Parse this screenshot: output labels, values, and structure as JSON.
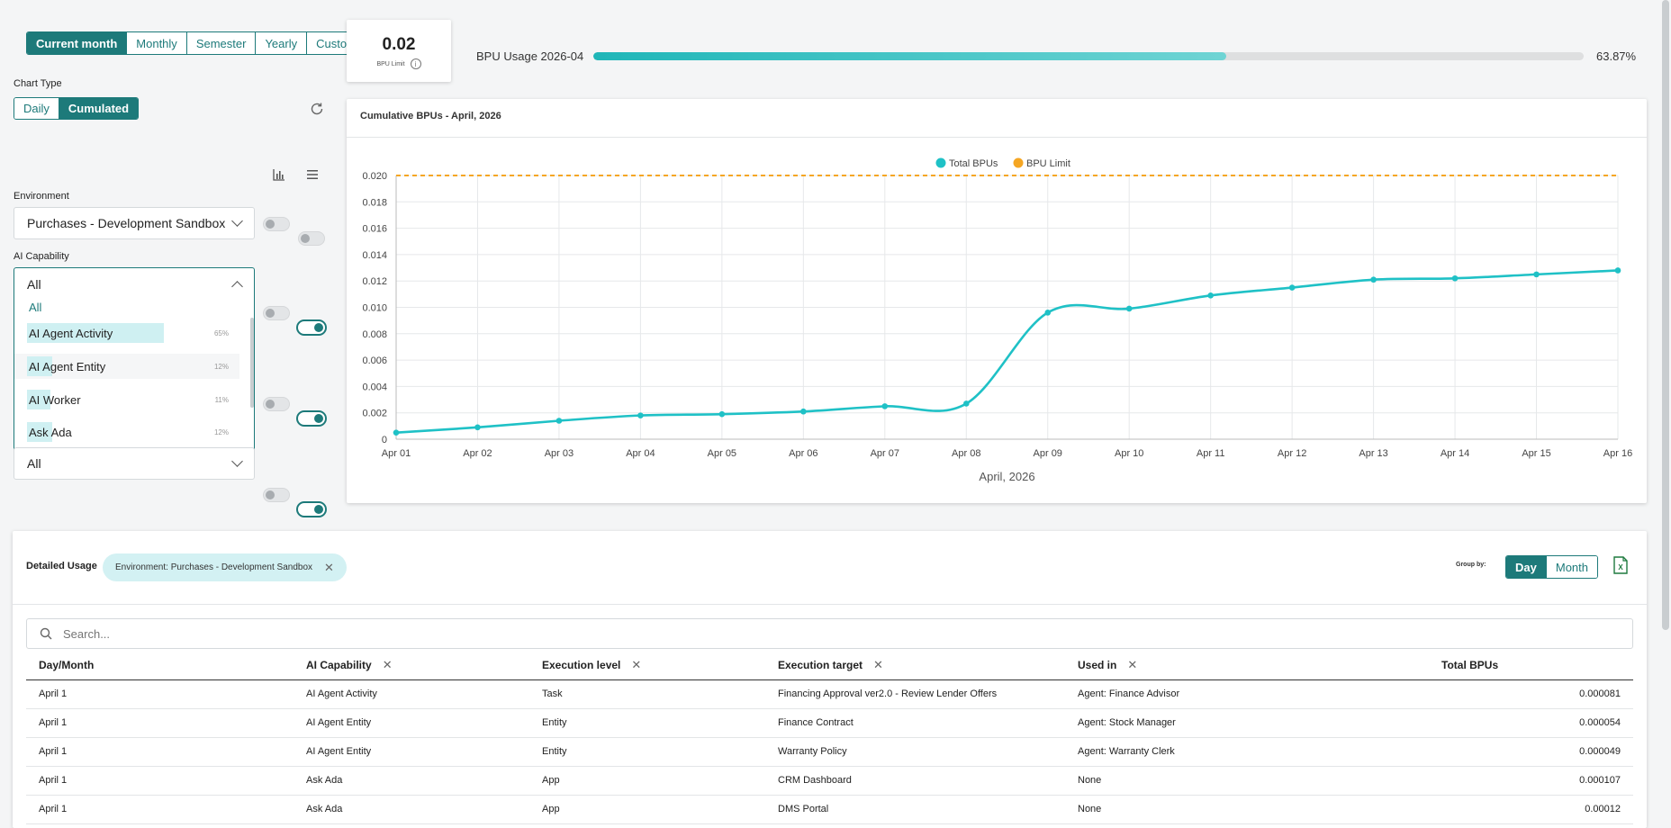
{
  "period": {
    "options": [
      "Current month",
      "Monthly",
      "Semester",
      "Yearly",
      "Custom"
    ],
    "active": "Current month"
  },
  "chart_type": {
    "label": "Chart Type",
    "options": [
      "Daily",
      "Cumulated"
    ],
    "active": "Cumulated"
  },
  "filters": {
    "environment_label": "Environment",
    "environment_value": "Purchases - Development Sandbox",
    "capability_label": "AI Capability",
    "capability_value": "All",
    "dropdown": {
      "items": [
        {
          "label": "All",
          "pct": ""
        },
        {
          "label": "AI Agent Activity",
          "pct": "65%",
          "fraction": 0.65
        },
        {
          "label": "AI Agent Entity",
          "pct": "12%",
          "fraction": 0.12
        },
        {
          "label": "AI Worker",
          "pct": "11%",
          "fraction": 0.11
        },
        {
          "label": "Ask Ada",
          "pct": "12%",
          "fraction": 0.12
        }
      ]
    },
    "last_select_value": "All"
  },
  "bpu_limit": {
    "value": "0.02",
    "label": "BPU Limit"
  },
  "usage": {
    "label": "BPU Usage 2026-04",
    "percent_text": "63.87%",
    "fraction": 0.6387
  },
  "chart_card": {
    "title": "Cumulative BPUs - April, 2026"
  },
  "chart_data": {
    "type": "line",
    "x": [
      "Apr 01",
      "Apr 02",
      "Apr 03",
      "Apr 04",
      "Apr 05",
      "Apr 06",
      "Apr 07",
      "Apr 08",
      "Apr 09",
      "Apr 10",
      "Apr 11",
      "Apr 12",
      "Apr 13",
      "Apr 14",
      "Apr 15",
      "Apr 16"
    ],
    "series": [
      {
        "name": "Total BPUs",
        "color": "#1fc1c6",
        "values": [
          0.0005,
          0.0009,
          0.0014,
          0.0018,
          0.0019,
          0.0021,
          0.0025,
          0.0027,
          0.0096,
          0.0099,
          0.0109,
          0.0115,
          0.0121,
          0.0122,
          0.0125,
          0.0128
        ]
      },
      {
        "name": "BPU Limit",
        "color": "#f5a623",
        "values": [
          0.02,
          0.02,
          0.02,
          0.02,
          0.02,
          0.02,
          0.02,
          0.02,
          0.02,
          0.02,
          0.02,
          0.02,
          0.02,
          0.02,
          0.02,
          0.02
        ],
        "style": "dashed"
      }
    ],
    "yticks": [
      "0",
      "0.002",
      "0.004",
      "0.006",
      "0.008",
      "0.010",
      "0.012",
      "0.014",
      "0.016",
      "0.018",
      "0.020"
    ],
    "ylim": [
      0,
      0.02
    ],
    "xlabel": "April, 2026",
    "ylabel": "",
    "grid": true,
    "legend": "top-center"
  },
  "detail": {
    "title": "Detailed Usage",
    "chip": "Environment: Purchases - Development Sandbox",
    "group_by_label": "Group by:",
    "group_options": [
      "Day",
      "Month"
    ],
    "group_active": "Day",
    "search_placeholder": "Search...",
    "columns": [
      "Day/Month",
      "AI Capability",
      "Execution level",
      "Execution target",
      "Used in",
      "Total BPUs"
    ],
    "rows": [
      [
        "April 1",
        "AI Agent Activity",
        "Task",
        "Financing Approval ver2.0 - Review Lender Offers",
        "Agent: Finance Advisor",
        "0.000081"
      ],
      [
        "April 1",
        "AI Agent Entity",
        "Entity",
        "Finance Contract",
        "Agent: Stock Manager",
        "0.000054"
      ],
      [
        "April 1",
        "AI Agent Entity",
        "Entity",
        "Warranty Policy",
        "Agent: Warranty Clerk",
        "0.000049"
      ],
      [
        "April 1",
        "Ask Ada",
        "App",
        "CRM Dashboard",
        "None",
        "0.000107"
      ],
      [
        "April 1",
        "Ask Ada",
        "App",
        "DMS Portal",
        "None",
        "0.00012"
      ]
    ]
  },
  "colors": {
    "accent": "#1d7a7a",
    "series": "#1fc1c6",
    "limit": "#f5a623"
  }
}
